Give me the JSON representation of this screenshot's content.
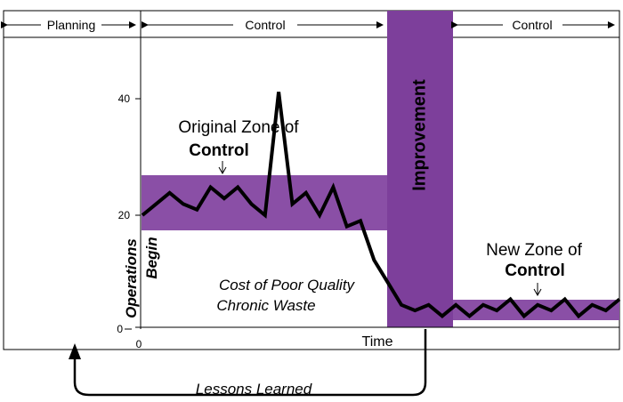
{
  "header": {
    "planning": "Planning",
    "control_left": "Control",
    "control_right": "Control"
  },
  "axis": {
    "ticks": [
      "40",
      "20",
      "0"
    ],
    "x_label": "Time"
  },
  "zones": {
    "original_line1": "Original Zone of",
    "original_line2": "Control",
    "new_line1": "New Zone of",
    "new_line2": "Control",
    "improvement": "Improvement"
  },
  "annotations": {
    "operations": "Operations",
    "begin": "Begin",
    "cost_line1": "Cost of Poor Quality",
    "cost_line2": "Chronic Waste",
    "lessons": "Lessons Learned"
  },
  "colors": {
    "zone_fill": "#8a4fa6",
    "improvement_fill": "#7d3f9b",
    "line": "#000000"
  },
  "chart_data": {
    "type": "line",
    "xlabel": "Time",
    "ylabel": "",
    "ylim": [
      0,
      45
    ],
    "series_values": [
      20,
      22,
      24,
      22,
      21,
      25,
      23,
      25,
      22,
      20,
      42,
      22,
      24,
      20,
      25,
      18,
      19,
      12,
      8,
      4,
      3,
      4,
      2,
      4,
      2,
      4,
      3,
      5,
      2,
      4,
      3,
      5,
      2,
      4,
      3,
      5
    ]
  }
}
